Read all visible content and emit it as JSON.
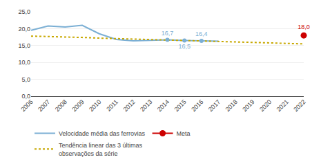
{
  "chart_data": {
    "type": "line",
    "xlim": [
      2006,
      2022
    ],
    "xticks": [
      2006,
      2007,
      2008,
      2009,
      2010,
      2011,
      2012,
      2013,
      2014,
      2015,
      2016,
      2017,
      2018,
      2019,
      2020,
      2021,
      2022
    ],
    "ylim": [
      0,
      25
    ],
    "yticks": [
      {
        "value": 0,
        "label": "0,0"
      },
      {
        "value": 5,
        "label": "5,0"
      },
      {
        "value": 10,
        "label": "10,0"
      },
      {
        "value": 15,
        "label": "15,0"
      },
      {
        "value": 20,
        "label": "20,0"
      },
      {
        "value": 25,
        "label": "25,0"
      }
    ],
    "grid": "y",
    "legend": "bottom",
    "data_labels": true,
    "series": [
      {
        "name": "Velocidade média das ferrovias",
        "color": "#7bafd4",
        "line_style": "solid",
        "x": [
          2006,
          2007,
          2008,
          2009,
          2010,
          2011,
          2012,
          2013,
          2014,
          2015,
          2016,
          2017
        ],
        "values": [
          19.5,
          20.8,
          20.5,
          21.0,
          18.5,
          16.8,
          16.4,
          16.5,
          16.7,
          16.5,
          16.4,
          16.3
        ]
      },
      {
        "name": "Meta",
        "color": "#cc0000",
        "marker": "circle",
        "line_style": "solid",
        "x": [
          2022
        ],
        "values": [
          18.0
        ],
        "value_labels": [
          "18,0"
        ]
      },
      {
        "name": "Tendência linear das 3 últimas\nobservações da série",
        "color": "#c8a800",
        "line_style": "dotted",
        "x": [
          2006,
          2007,
          2008,
          2009,
          2010,
          2011,
          2012,
          2013,
          2014,
          2015,
          2016,
          2017,
          2018,
          2019,
          2020,
          2021,
          2022
        ],
        "values": [
          17.8,
          17.7,
          17.55,
          17.4,
          17.2,
          17.05,
          16.9,
          16.75,
          16.65,
          16.5,
          16.38,
          16.25,
          16.1,
          15.95,
          15.8,
          15.65,
          15.5
        ]
      },
      {
        "color": "#7bafd4",
        "marker": "circle",
        "x": [
          2014,
          2015,
          2016
        ],
        "values": [
          16.7,
          16.5,
          16.4
        ],
        "value_labels": [
          "16,7",
          "16,5",
          "16,4"
        ]
      }
    ]
  }
}
